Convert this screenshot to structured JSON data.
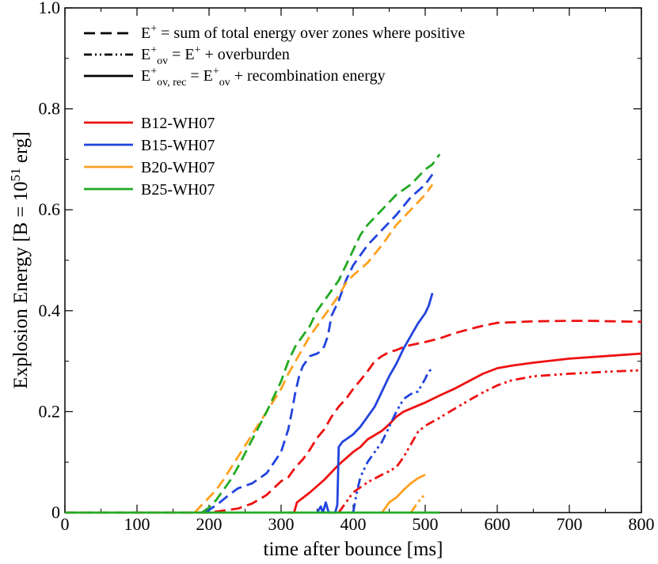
{
  "chart_data": {
    "type": "line",
    "xlabel": "time after bounce [ms]",
    "ylabel": {
      "prefix": "Explosion Energy [B = 10",
      "exponent": "51",
      "suffix": " erg]"
    },
    "xlim": [
      0,
      800
    ],
    "ylim": [
      0,
      1.0
    ],
    "xticks": [
      0,
      100,
      200,
      300,
      400,
      500,
      600,
      700,
      800
    ],
    "yticks": [
      {
        "value": 0,
        "label": "0"
      },
      {
        "value": 0.2,
        "label": "0.2"
      },
      {
        "value": 0.4,
        "label": "0.4"
      },
      {
        "value": 0.6,
        "label": "0.6"
      },
      {
        "value": 0.8,
        "label": "0.8"
      },
      {
        "value": 1.0,
        "label": "1.0"
      }
    ],
    "legend_styles": [
      {
        "style": "dashed",
        "label_parts": [
          {
            "t": "E"
          },
          {
            "t": "+",
            "sup": true
          },
          {
            "t": " = sum of total energy over zones where positive"
          }
        ]
      },
      {
        "style": "dashdotdot",
        "label_parts": [
          {
            "t": "E"
          },
          {
            "t": "+",
            "sup": true
          },
          {
            "t": "ov",
            "sub": true
          },
          {
            "t": " = E"
          },
          {
            "t": "+",
            "sup": true
          },
          {
            "t": " + overburden"
          }
        ]
      },
      {
        "style": "solid",
        "label_parts": [
          {
            "t": "E"
          },
          {
            "t": "+",
            "sup": true
          },
          {
            "t": "ov, rec",
            "sub": true
          },
          {
            "t": " = E"
          },
          {
            "t": "+",
            "sup": true
          },
          {
            "t": "ov",
            "sub": true
          },
          {
            "t": " + recombination energy"
          }
        ]
      }
    ],
    "series": [
      {
        "name": "B12-WH07",
        "color": "#ee1111",
        "dashed": [
          [
            0,
            0
          ],
          [
            200,
            0
          ],
          [
            215,
            0.003
          ],
          [
            240,
            0.008
          ],
          [
            260,
            0.018
          ],
          [
            280,
            0.035
          ],
          [
            300,
            0.062
          ],
          [
            310,
            0.07
          ],
          [
            320,
            0.09
          ],
          [
            330,
            0.105
          ],
          [
            340,
            0.125
          ],
          [
            350,
            0.148
          ],
          [
            360,
            0.165
          ],
          [
            370,
            0.19
          ],
          [
            380,
            0.21
          ],
          [
            390,
            0.225
          ],
          [
            400,
            0.245
          ],
          [
            410,
            0.262
          ],
          [
            420,
            0.28
          ],
          [
            430,
            0.3
          ],
          [
            440,
            0.31
          ],
          [
            450,
            0.318
          ],
          [
            460,
            0.322
          ],
          [
            470,
            0.328
          ],
          [
            480,
            0.332
          ],
          [
            500,
            0.338
          ],
          [
            520,
            0.345
          ],
          [
            540,
            0.355
          ],
          [
            560,
            0.363
          ],
          [
            580,
            0.37
          ],
          [
            600,
            0.376
          ],
          [
            620,
            0.377
          ],
          [
            650,
            0.379
          ],
          [
            700,
            0.38
          ],
          [
            730,
            0.38
          ],
          [
            760,
            0.379
          ],
          [
            800,
            0.378
          ]
        ],
        "dashdot": [
          [
            380,
            0
          ],
          [
            400,
            0.04
          ],
          [
            420,
            0.06
          ],
          [
            440,
            0.075
          ],
          [
            450,
            0.082
          ],
          [
            460,
            0.09
          ],
          [
            470,
            0.11
          ],
          [
            480,
            0.135
          ],
          [
            490,
            0.16
          ],
          [
            500,
            0.172
          ],
          [
            510,
            0.18
          ],
          [
            520,
            0.188
          ],
          [
            540,
            0.205
          ],
          [
            560,
            0.222
          ],
          [
            580,
            0.238
          ],
          [
            600,
            0.252
          ],
          [
            620,
            0.262
          ],
          [
            650,
            0.27
          ],
          [
            700,
            0.275
          ],
          [
            750,
            0.279
          ],
          [
            800,
            0.282
          ]
        ],
        "solid": [
          [
            310,
            0
          ],
          [
            318,
            0
          ],
          [
            322,
            0.02
          ],
          [
            340,
            0.04
          ],
          [
            360,
            0.065
          ],
          [
            380,
            0.095
          ],
          [
            400,
            0.12
          ],
          [
            410,
            0.13
          ],
          [
            420,
            0.145
          ],
          [
            440,
            0.162
          ],
          [
            450,
            0.175
          ],
          [
            460,
            0.19
          ],
          [
            470,
            0.2
          ],
          [
            480,
            0.206
          ],
          [
            490,
            0.212
          ],
          [
            500,
            0.218
          ],
          [
            520,
            0.232
          ],
          [
            540,
            0.245
          ],
          [
            560,
            0.26
          ],
          [
            580,
            0.275
          ],
          [
            600,
            0.286
          ],
          [
            620,
            0.291
          ],
          [
            650,
            0.297
          ],
          [
            700,
            0.305
          ],
          [
            750,
            0.31
          ],
          [
            800,
            0.315
          ]
        ]
      },
      {
        "name": "B15-WH07",
        "color": "#2244dd",
        "dashed": [
          [
            195,
            0
          ],
          [
            205,
            0.01
          ],
          [
            215,
            0.02
          ],
          [
            225,
            0.032
          ],
          [
            240,
            0.048
          ],
          [
            260,
            0.058
          ],
          [
            280,
            0.078
          ],
          [
            300,
            0.12
          ],
          [
            310,
            0.165
          ],
          [
            315,
            0.2
          ],
          [
            320,
            0.24
          ],
          [
            325,
            0.27
          ],
          [
            330,
            0.29
          ],
          [
            335,
            0.3
          ],
          [
            340,
            0.31
          ],
          [
            350,
            0.315
          ],
          [
            355,
            0.32
          ],
          [
            360,
            0.33
          ],
          [
            365,
            0.35
          ],
          [
            370,
            0.39
          ],
          [
            380,
            0.42
          ],
          [
            390,
            0.46
          ],
          [
            400,
            0.49
          ],
          [
            420,
            0.53
          ],
          [
            440,
            0.56
          ],
          [
            460,
            0.59
          ],
          [
            480,
            0.625
          ],
          [
            500,
            0.65
          ],
          [
            510,
            0.67
          ]
        ],
        "dashdot": [
          [
            400,
            0
          ],
          [
            405,
            0.04
          ],
          [
            410,
            0.07
          ],
          [
            420,
            0.1
          ],
          [
            430,
            0.12
          ],
          [
            440,
            0.14
          ],
          [
            450,
            0.17
          ],
          [
            460,
            0.2
          ],
          [
            470,
            0.225
          ],
          [
            480,
            0.235
          ],
          [
            490,
            0.24
          ],
          [
            500,
            0.265
          ],
          [
            505,
            0.28
          ],
          [
            510,
            0.285
          ]
        ],
        "solid": [
          [
            350,
            0
          ],
          [
            355,
            0.012
          ],
          [
            358,
            0
          ],
          [
            362,
            0.02
          ],
          [
            366,
            0
          ],
          [
            375,
            0
          ],
          [
            378,
            0.015
          ],
          [
            380,
            0.13
          ],
          [
            385,
            0.14
          ],
          [
            390,
            0.145
          ],
          [
            400,
            0.155
          ],
          [
            410,
            0.17
          ],
          [
            420,
            0.19
          ],
          [
            430,
            0.21
          ],
          [
            440,
            0.24
          ],
          [
            450,
            0.27
          ],
          [
            460,
            0.295
          ],
          [
            470,
            0.325
          ],
          [
            480,
            0.35
          ],
          [
            490,
            0.375
          ],
          [
            500,
            0.395
          ],
          [
            505,
            0.41
          ],
          [
            510,
            0.435
          ]
        ]
      },
      {
        "name": "B20-WH07",
        "color": "#ffa020",
        "dashed": [
          [
            180,
            0
          ],
          [
            190,
            0.015
          ],
          [
            200,
            0.03
          ],
          [
            210,
            0.045
          ],
          [
            220,
            0.065
          ],
          [
            240,
            0.11
          ],
          [
            260,
            0.155
          ],
          [
            280,
            0.2
          ],
          [
            300,
            0.245
          ],
          [
            310,
            0.275
          ],
          [
            320,
            0.3
          ],
          [
            340,
            0.35
          ],
          [
            360,
            0.39
          ],
          [
            380,
            0.43
          ],
          [
            390,
            0.455
          ],
          [
            400,
            0.47
          ],
          [
            420,
            0.495
          ],
          [
            440,
            0.53
          ],
          [
            460,
            0.57
          ],
          [
            480,
            0.6
          ],
          [
            500,
            0.63
          ],
          [
            510,
            0.65
          ]
        ],
        "dashdot": [
          [
            480,
            0
          ],
          [
            490,
            0.02
          ],
          [
            495,
            0.03
          ],
          [
            500,
            0.035
          ]
        ],
        "solid": [
          [
            440,
            0
          ],
          [
            450,
            0.02
          ],
          [
            460,
            0.03
          ],
          [
            470,
            0.045
          ],
          [
            480,
            0.058
          ],
          [
            490,
            0.068
          ],
          [
            500,
            0.075
          ]
        ]
      },
      {
        "name": "B25-WH07",
        "color": "#22aa22",
        "dashed": [
          [
            190,
            0
          ],
          [
            200,
            0.01
          ],
          [
            210,
            0.025
          ],
          [
            220,
            0.045
          ],
          [
            230,
            0.065
          ],
          [
            240,
            0.09
          ],
          [
            260,
            0.145
          ],
          [
            280,
            0.2
          ],
          [
            300,
            0.26
          ],
          [
            310,
            0.3
          ],
          [
            320,
            0.33
          ],
          [
            340,
            0.37
          ],
          [
            350,
            0.4
          ],
          [
            360,
            0.42
          ],
          [
            380,
            0.46
          ],
          [
            390,
            0.49
          ],
          [
            400,
            0.52
          ],
          [
            410,
            0.55
          ],
          [
            420,
            0.57
          ],
          [
            440,
            0.6
          ],
          [
            460,
            0.63
          ],
          [
            480,
            0.65
          ],
          [
            500,
            0.68
          ],
          [
            510,
            0.69
          ],
          [
            520,
            0.71
          ]
        ],
        "dashdot": [],
        "solid": [
          [
            0,
            0
          ],
          [
            520,
            0
          ]
        ]
      }
    ]
  }
}
